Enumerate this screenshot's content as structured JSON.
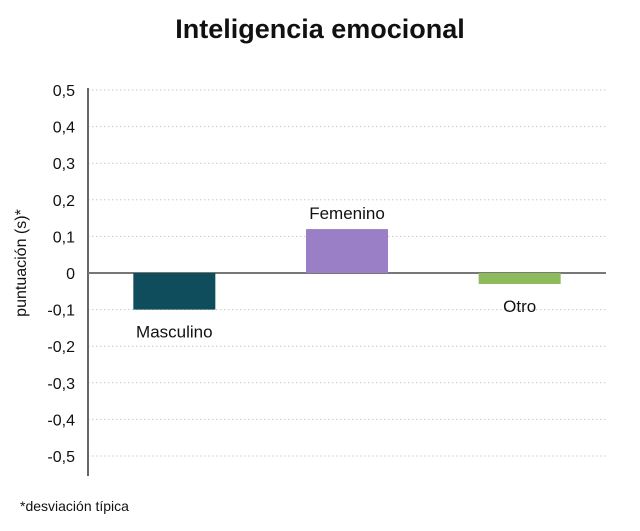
{
  "chart_data": {
    "type": "bar",
    "title": "Inteligencia emocional",
    "ylabel": "puntuación (s)*",
    "categories": [
      "Masculino",
      "Femenino",
      "Otro"
    ],
    "values": [
      -0.1,
      0.12,
      -0.03
    ],
    "ylim": [
      -0.5,
      0.5
    ],
    "yticks": [
      "0,5",
      "0,4",
      "0,3",
      "0,2",
      "0,1",
      "0",
      "-0,1",
      "-0,2",
      "-0,3",
      "-0,4",
      "-0,5"
    ],
    "ytick_values": [
      0.5,
      0.4,
      0.3,
      0.2,
      0.1,
      0,
      -0.1,
      -0.2,
      -0.3,
      -0.4,
      -0.5
    ],
    "colors": [
      "#0f4c5c",
      "#9b7fc6",
      "#8dbb5b"
    ],
    "grid": true,
    "footnote": "*desviación típica"
  }
}
